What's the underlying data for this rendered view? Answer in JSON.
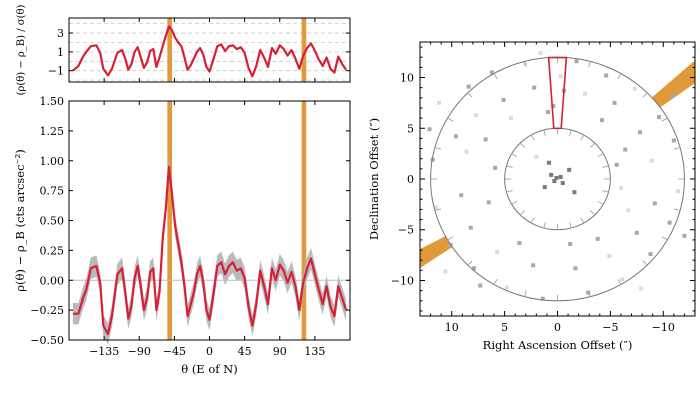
{
  "chart_data": [
    {
      "type": "line",
      "panel": "significance",
      "ylabel": "(ρ(θ) − ρ_B) / σ(θ)",
      "ylim": [
        -2.2,
        4.6
      ],
      "xlim": [
        -180,
        180
      ],
      "yticks": [
        -1,
        1,
        3
      ],
      "xticks": [
        -135,
        -90,
        -45,
        0,
        45,
        90,
        135
      ],
      "grid_y_dashed": [
        -2,
        -1,
        0,
        1,
        2,
        3,
        4
      ],
      "highlight_bands": [
        [
          -54,
          -48
        ],
        [
          118,
          124
        ]
      ],
      "series": [
        {
          "name": "significance",
          "color": "#d62035",
          "x": [
            -175,
            -168,
            -162,
            -158,
            -152,
            -145,
            -140,
            -136,
            -130,
            -125,
            -118,
            -112,
            -108,
            -104,
            -100,
            -96,
            -92,
            -88,
            -84,
            -80,
            -76,
            -72,
            -68,
            -64,
            -60,
            -56,
            -52,
            -48,
            -44,
            -40,
            -36,
            -32,
            -28,
            -24,
            -20,
            -16,
            -12,
            -8,
            -4,
            0,
            5,
            10,
            15,
            20,
            25,
            30,
            35,
            40,
            45,
            50,
            55,
            60,
            65,
            70,
            75,
            80,
            85,
            90,
            95,
            100,
            105,
            110,
            115,
            120,
            125,
            130,
            135,
            140,
            145,
            150,
            155,
            160,
            165,
            170,
            175
          ],
          "y": [
            -1.0,
            -0.5,
            0.5,
            1.0,
            1.6,
            1.7,
            0.9,
            -0.8,
            -1.5,
            -0.8,
            0.9,
            1.2,
            0.3,
            -0.9,
            -0.3,
            1.0,
            1.5,
            0.4,
            -0.7,
            -0.1,
            1.1,
            1.3,
            -0.6,
            0.4,
            1.6,
            2.7,
            3.7,
            3.3,
            2.5,
            2.0,
            1.6,
            0.4,
            -0.9,
            -0.4,
            0.3,
            1.0,
            1.4,
            0.7,
            -0.6,
            -1.1,
            0.2,
            1.6,
            1.8,
            1.1,
            1.6,
            1.7,
            1.3,
            1.5,
            0.9,
            -0.7,
            -1.6,
            -0.5,
            1.2,
            0.4,
            -0.6,
            1.4,
            0.8,
            1.7,
            1.3,
            0.6,
            1.2,
            0.3,
            -0.8,
            0.6,
            1.4,
            1.9,
            1.1,
            0.2,
            -0.5,
            0.4,
            -0.8,
            -1.2,
            0.5,
            -0.3,
            -0.9
          ]
        }
      ]
    },
    {
      "type": "line",
      "panel": "density profile",
      "xlabel": "θ (E of N)",
      "ylabel": "ρ(θ) − ρ_B (cts arcsec⁻²)",
      "xlim": [
        -180,
        180
      ],
      "ylim": [
        -0.5,
        1.5
      ],
      "xticks": [
        -135,
        -90,
        -45,
        0,
        45,
        90,
        135
      ],
      "yticks": [
        -0.5,
        -0.25,
        0.0,
        0.25,
        0.5,
        0.75,
        1.0,
        1.25,
        1.5
      ],
      "reference_line_y": 0.0,
      "highlight_bands": [
        [
          -54,
          -48
        ],
        [
          118,
          124
        ]
      ],
      "series": [
        {
          "name": "binned profile",
          "color": "#d62035",
          "x": [
            -175,
            -168,
            -162,
            -158,
            -152,
            -145,
            -140,
            -136,
            -130,
            -125,
            -118,
            -112,
            -108,
            -104,
            -100,
            -96,
            -92,
            -88,
            -84,
            -80,
            -76,
            -72,
            -68,
            -64,
            -60,
            -56,
            -52,
            -48,
            -44,
            -40,
            -36,
            -32,
            -28,
            -24,
            -20,
            -16,
            -12,
            -8,
            -4,
            0,
            5,
            10,
            15,
            20,
            25,
            30,
            35,
            40,
            45,
            50,
            55,
            60,
            65,
            70,
            75,
            80,
            85,
            90,
            95,
            100,
            105,
            110,
            115,
            120,
            125,
            130,
            135,
            140,
            145,
            150,
            155,
            160,
            165,
            170,
            175
          ],
          "y": [
            -0.28,
            -0.28,
            -0.15,
            -0.08,
            0.1,
            0.12,
            -0.02,
            -0.38,
            -0.45,
            -0.3,
            0.05,
            0.1,
            -0.1,
            -0.32,
            -0.22,
            0.02,
            0.12,
            -0.05,
            -0.25,
            -0.15,
            0.07,
            0.1,
            -0.25,
            -0.1,
            0.35,
            0.6,
            0.95,
            0.72,
            0.45,
            0.3,
            0.15,
            -0.05,
            -0.3,
            -0.2,
            -0.1,
            0.05,
            0.12,
            -0.02,
            -0.25,
            -0.33,
            -0.12,
            0.12,
            0.15,
            0.05,
            0.12,
            0.15,
            0.08,
            0.1,
            0.02,
            -0.22,
            -0.38,
            -0.2,
            0.08,
            -0.05,
            -0.2,
            0.1,
            0.0,
            0.13,
            0.08,
            -0.02,
            0.07,
            -0.05,
            -0.25,
            -0.02,
            0.1,
            0.18,
            0.05,
            -0.08,
            -0.2,
            -0.05,
            -0.22,
            -0.3,
            -0.05,
            -0.15,
            -0.25
          ]
        },
        {
          "name": "uncertainty band",
          "color": "#b3b3b3",
          "half_width": 0.09
        }
      ]
    },
    {
      "type": "scatter",
      "panel": "sky map",
      "xlabel": "Right Ascension Offset (″)",
      "ylabel": "Declination Offset (″)",
      "xlim": [
        13,
        -13
      ],
      "ylim": [
        -13.5,
        13.5
      ],
      "xticks": [
        10,
        5,
        0,
        -5,
        -10
      ],
      "yticks": [
        -10,
        -5,
        0,
        5,
        10
      ],
      "annulus_radii": [
        5,
        12
      ],
      "wedge": {
        "center_angle": 0,
        "half_width": 4,
        "r_inner": 5,
        "r_outer": 12,
        "color": "#d62035"
      },
      "highlight_angle_bands": [
        [
          -54,
          -48
        ],
        [
          118,
          124
        ]
      ],
      "points": [
        [
          11.2,
          7.5
        ],
        [
          8.4,
          9.1
        ],
        [
          6.2,
          10.5
        ],
        [
          3.1,
          11.4
        ],
        [
          -1.8,
          11.6
        ],
        [
          -4.6,
          10.2
        ],
        [
          -7.3,
          8.9
        ],
        [
          -9.6,
          6.1
        ],
        [
          -11.0,
          3.8
        ],
        [
          -11.4,
          -1.2
        ],
        [
          -10.6,
          -4.3
        ],
        [
          -8.8,
          -7.4
        ],
        [
          -6.1,
          -9.9
        ],
        [
          -2.9,
          -11.2
        ],
        [
          1.4,
          -11.8
        ],
        [
          4.8,
          -10.7
        ],
        [
          7.9,
          -8.8
        ],
        [
          10.1,
          -6.5
        ],
        [
          11.5,
          -2.8
        ],
        [
          11.8,
          1.9
        ],
        [
          9.6,
          4.2
        ],
        [
          7.7,
          6.3
        ],
        [
          5.1,
          7.8
        ],
        [
          2.2,
          9.0
        ],
        [
          -2.6,
          8.4
        ],
        [
          -5.4,
          7.5
        ],
        [
          -7.8,
          4.6
        ],
        [
          -8.9,
          1.8
        ],
        [
          -9.2,
          -2.4
        ],
        [
          -7.5,
          -5.3
        ],
        [
          -4.9,
          -7.6
        ],
        [
          -1.7,
          -8.8
        ],
        [
          2.3,
          -8.5
        ],
        [
          5.7,
          -7.2
        ],
        [
          8.2,
          -4.8
        ],
        [
          9.1,
          -1.6
        ],
        [
          8.6,
          2.7
        ],
        [
          6.8,
          3.9
        ],
        [
          -6.4,
          2.9
        ],
        [
          -6.7,
          -3.1
        ],
        [
          3.6,
          -6.3
        ],
        [
          -3.8,
          -5.9
        ],
        [
          4.4,
          6.0
        ],
        [
          -4.2,
          5.8
        ],
        [
          6.5,
          -2.3
        ],
        [
          -6.0,
          -0.9
        ],
        [
          0.9,
          6.6
        ],
        [
          -1.2,
          -6.4
        ],
        [
          10.6,
          -9.1
        ],
        [
          -10.9,
          8.2
        ],
        [
          7.3,
          -10.5
        ],
        [
          -7.9,
          -10.8
        ],
        [
          12.1,
          4.9
        ],
        [
          -12.0,
          -5.6
        ],
        [
          1.6,
          12.4
        ],
        [
          -0.6,
          8.7
        ],
        [
          0.4,
          7.2
        ],
        [
          -0.3,
          10.1
        ],
        [
          5.9,
          1.1
        ],
        [
          -5.6,
          1.4
        ],
        [
          0.1,
          0.1
        ],
        [
          0.3,
          -0.2
        ],
        [
          -0.3,
          0.2
        ],
        [
          0.6,
          0.4
        ],
        [
          -0.5,
          -0.4
        ],
        [
          1.2,
          -0.8
        ],
        [
          -1.1,
          0.9
        ],
        [
          0.8,
          1.6
        ],
        [
          -1.6,
          -1.3
        ],
        [
          2.0,
          2.2
        ]
      ]
    }
  ]
}
